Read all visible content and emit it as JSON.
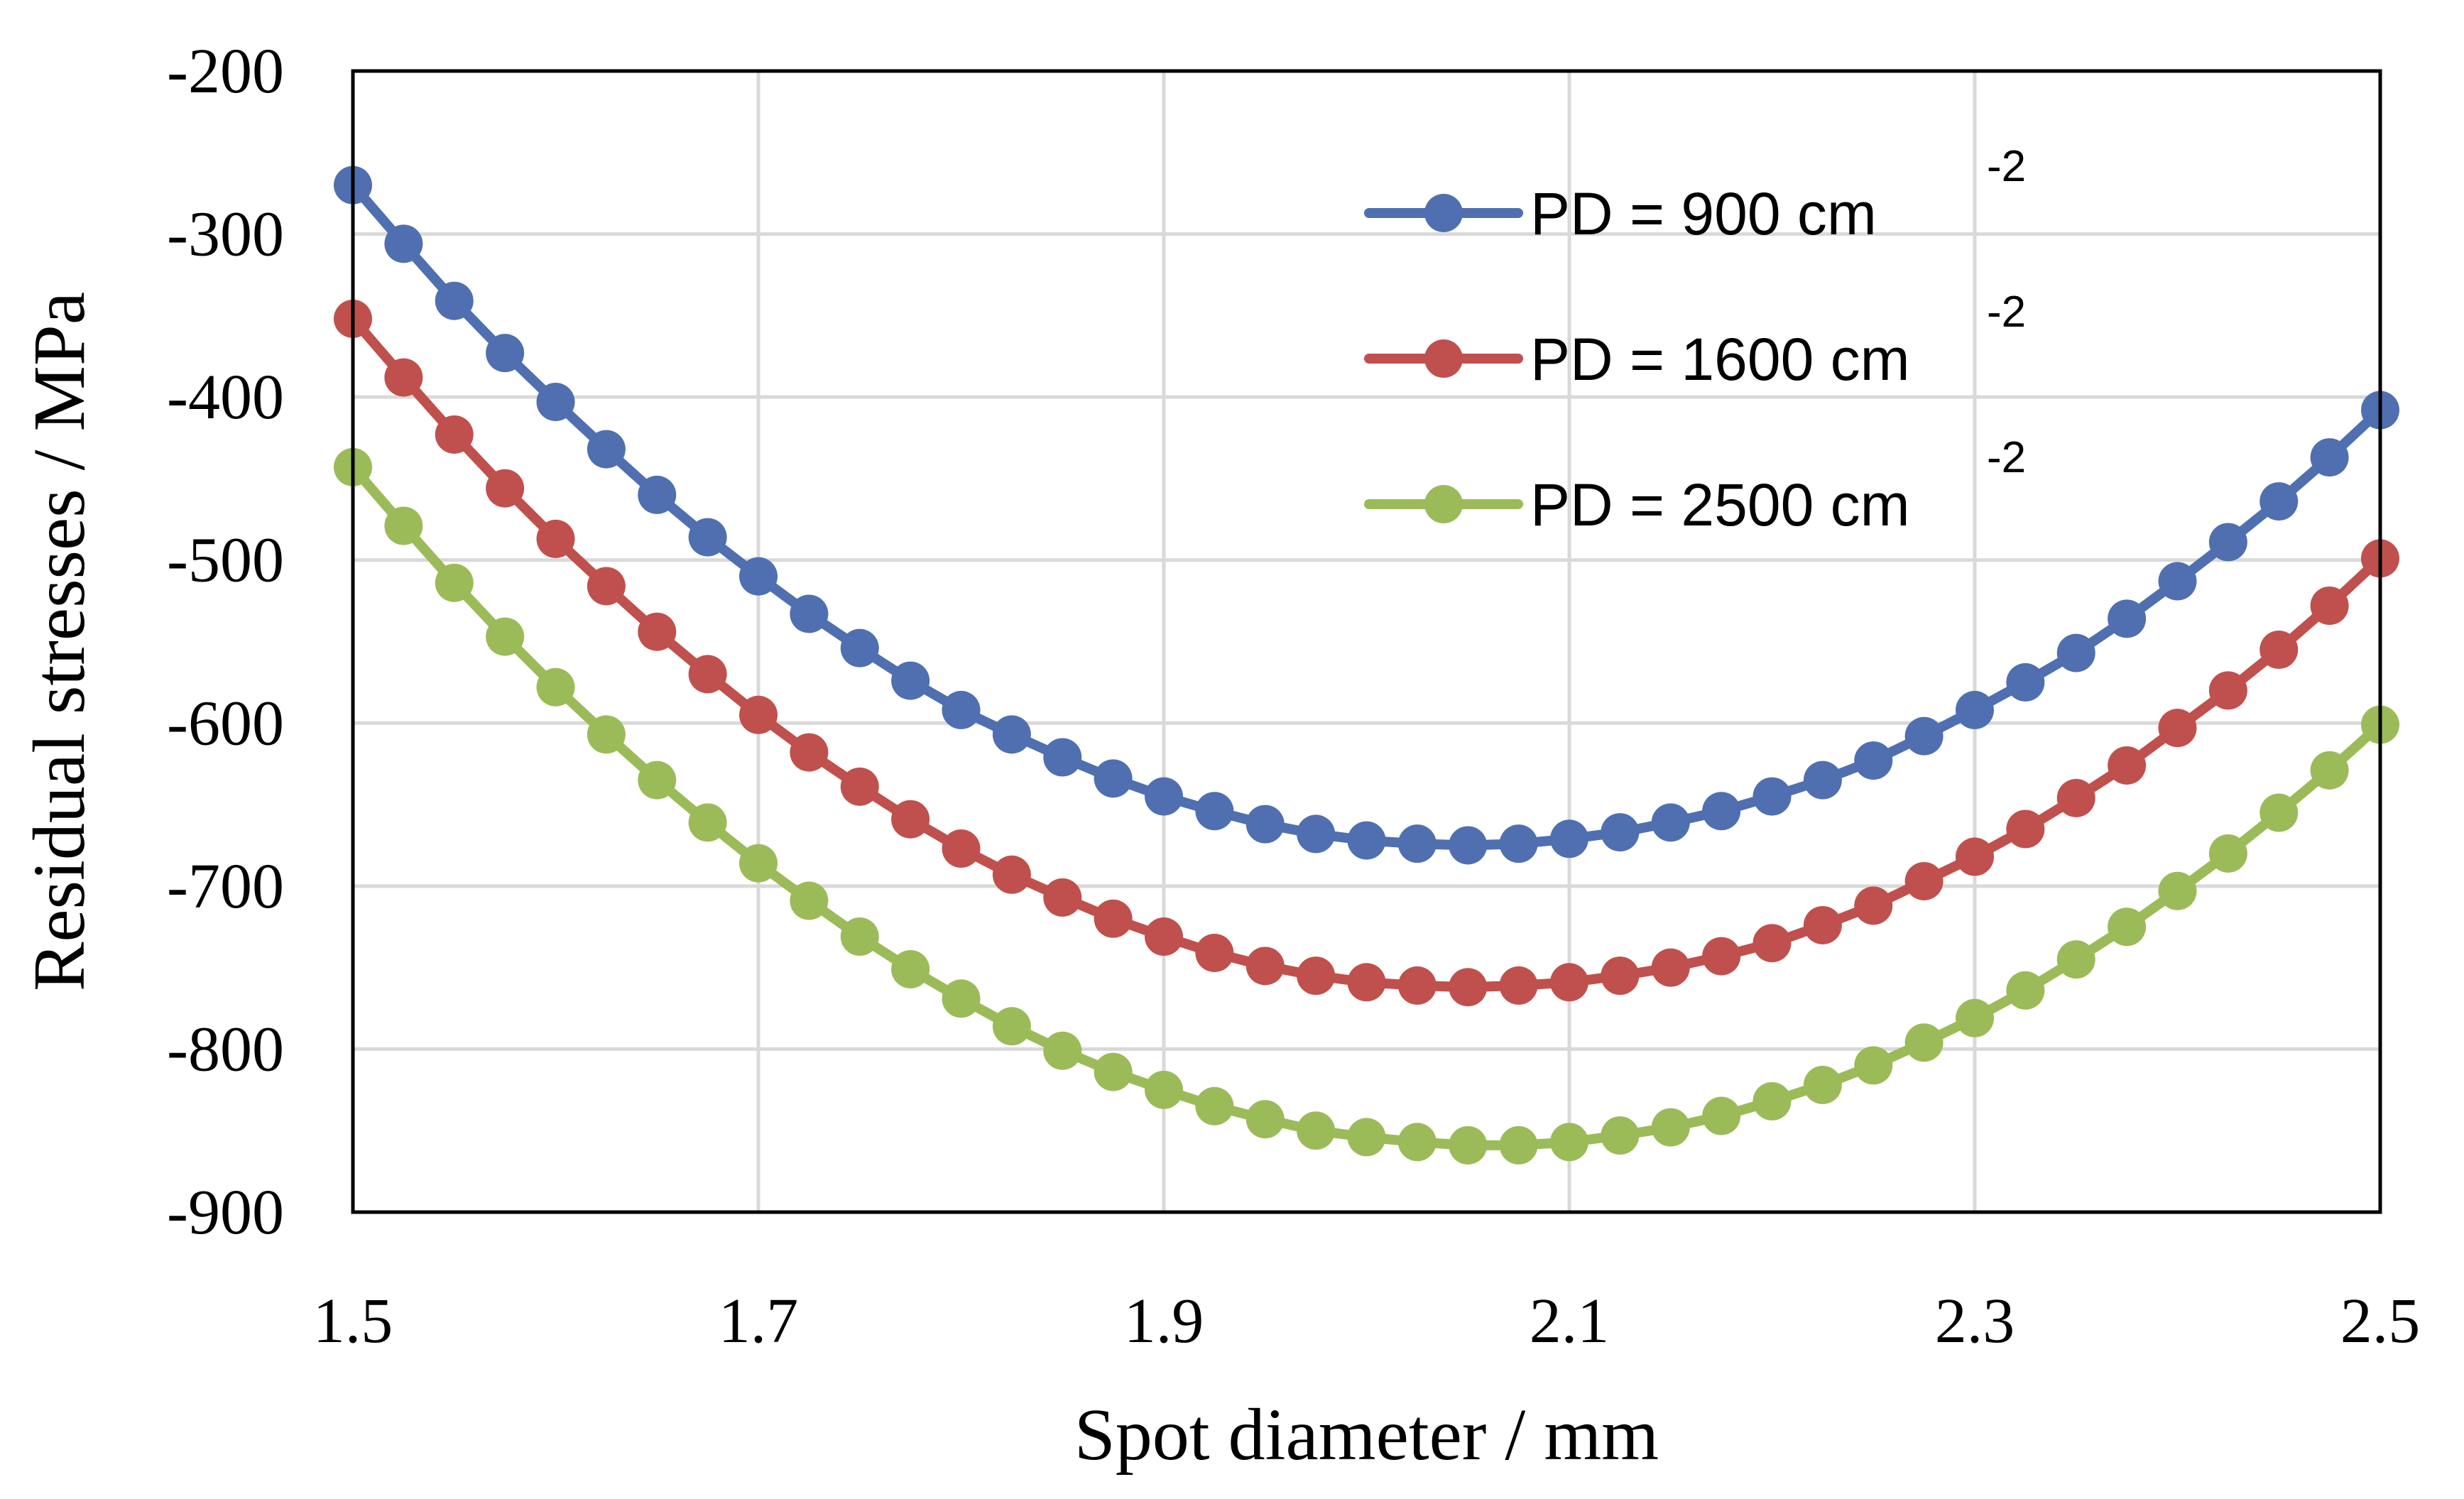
{
  "chart_data": {
    "type": "line",
    "title": "",
    "xlabel": "Spot diameter  / mm",
    "ylabel": "Residual stresses  / MPa",
    "xlim": [
      1.5,
      2.5
    ],
    "ylim": [
      -900,
      -200
    ],
    "x_ticks": [
      "1.5",
      "1.7",
      "1.9",
      "2.1",
      "2.3",
      "2.5"
    ],
    "y_ticks": [
      "-200",
      "-300",
      "-400",
      "-500",
      "-600",
      "-700",
      "-800",
      "-900"
    ],
    "grid": true,
    "legend_position": "top-right",
    "x": [
      1.5,
      1.525,
      1.55,
      1.575,
      1.6,
      1.625,
      1.65,
      1.675,
      1.7,
      1.725,
      1.75,
      1.775,
      1.8,
      1.825,
      1.85,
      1.875,
      1.9,
      1.925,
      1.95,
      1.975,
      2.0,
      2.025,
      2.05,
      2.075,
      2.1,
      2.125,
      2.15,
      2.175,
      2.2,
      2.225,
      2.25,
      2.275,
      2.3,
      2.325,
      2.35,
      2.375,
      2.4,
      2.425,
      2.45,
      2.475,
      2.5
    ],
    "series": [
      {
        "name_main": "PD =   900 cm",
        "name_sup": "-2",
        "color": "#4F6FB0",
        "values": [
          -270,
          -306,
          -341,
          -373,
          -403,
          -432,
          -460,
          -486,
          -510,
          -533,
          -554,
          -574,
          -592,
          -607,
          -621,
          -634,
          -645,
          -654,
          -662,
          -668,
          -672,
          -674,
          -675,
          -674,
          -671,
          -667,
          -661,
          -654,
          -645,
          -635,
          -623,
          -608,
          -592,
          -575,
          -557,
          -536,
          -513,
          -489,
          -464,
          -437,
          -408
        ]
      },
      {
        "name_main": "PD = 1600 cm",
        "name_sup": "-2",
        "color": "#C0504D",
        "values": [
          -352,
          -388,
          -423,
          -456,
          -487,
          -516,
          -544,
          -570,
          -595,
          -618,
          -639,
          -659,
          -677,
          -693,
          -707,
          -720,
          -731,
          -741,
          -749,
          -755,
          -759,
          -761,
          -762,
          -761,
          -759,
          -755,
          -750,
          -743,
          -735,
          -724,
          -712,
          -697,
          -682,
          -665,
          -646,
          -626,
          -603,
          -580,
          -555,
          -528,
          -499
        ]
      },
      {
        "name_main": "PD = 2500 cm",
        "name_sup": "-2",
        "color": "#9BBB59",
        "values": [
          -443,
          -479,
          -514,
          -547,
          -578,
          -607,
          -635,
          -661,
          -686,
          -709,
          -731,
          -751,
          -769,
          -786,
          -801,
          -814,
          -825,
          -835,
          -843,
          -850,
          -854,
          -857,
          -859,
          -859,
          -857,
          -853,
          -848,
          -841,
          -832,
          -822,
          -810,
          -796,
          -781,
          -764,
          -745,
          -725,
          -703,
          -680,
          -655,
          -629,
          -601
        ]
      }
    ]
  }
}
